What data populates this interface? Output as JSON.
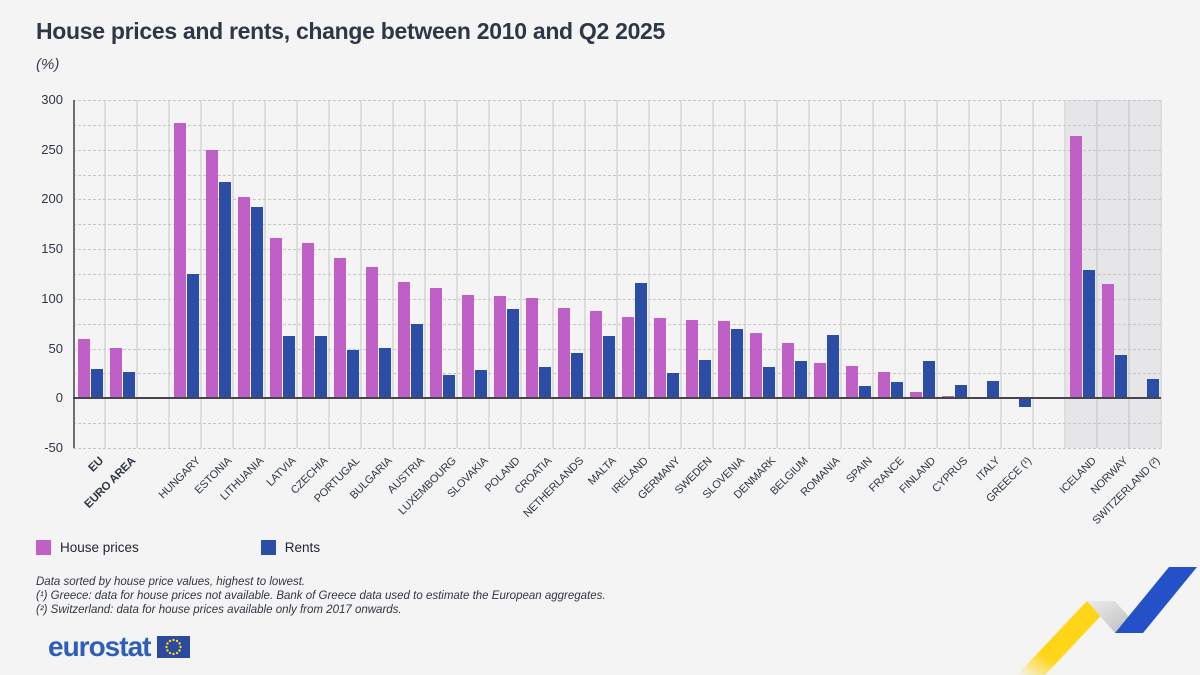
{
  "title": "House prices and rents, change between 2010 and Q2 2025",
  "subtitle": "(%)",
  "legend": {
    "house_prices_label": "House prices",
    "rents_label": "Rents"
  },
  "footnotes": [
    "Data sorted by house price values, highest to lowest.",
    "(¹) Greece: data for house prices not available. Bank of Greece data used to estimate the European aggregates.",
    "(²) Switzerland: data for house prices available only from 2017 onwards."
  ],
  "logo": {
    "text": "eurostat"
  },
  "colors": {
    "background": "#f4f4f5",
    "house_prices": "#c05fc5",
    "rents": "#2c4da6",
    "efta_shade": "#e6e6e8",
    "title_text": "#2e3745",
    "logo_blue": "#2e5eb8",
    "ribbon_yellow": "#ffd617",
    "ribbon_blue": "#2451c8"
  },
  "chart_data": {
    "type": "bar",
    "title": "House prices and rents, change between 2010 and Q2 2025",
    "ylabel": "(%)",
    "ylim": [
      -50,
      300
    ],
    "y_ticks": [
      300,
      250,
      200,
      150,
      100,
      50,
      0,
      -50
    ],
    "minor_grid_step": 25,
    "grid": true,
    "legend_position": "bottom-left",
    "categories": [
      "EU",
      "EURO AREA",
      "HUNGARY",
      "ESTONIA",
      "LITHUANIA",
      "LATVIA",
      "CZECHIA",
      "PORTUGAL",
      "BULGARIA",
      "AUSTRIA",
      "LUXEMBOURG",
      "SLOVAKIA",
      "POLAND",
      "CROATIA",
      "NETHERLANDS",
      "MALTA",
      "IRELAND",
      "GERMANY",
      "SWEDEN",
      "SLOVENIA",
      "DENMARK",
      "BELGIUM",
      "ROMANIA",
      "SPAIN",
      "FRANCE",
      "FINLAND",
      "CYPRUS",
      "ITALY",
      "GREECE (¹)",
      "ICELAND",
      "NORWAY",
      "SWITZERLAND (²)"
    ],
    "bold_categories": [
      "EU",
      "EURO AREA"
    ],
    "gap_before": [
      "HUNGARY",
      "ICELAND"
    ],
    "shaded_categories": [
      "ICELAND",
      "NORWAY",
      "SWITZERLAND (²)"
    ],
    "series": [
      {
        "name": "House prices",
        "color": "#c05fc5",
        "values": [
          60,
          51,
          277,
          250,
          202,
          161,
          156,
          141,
          132,
          117,
          111,
          104,
          103,
          101,
          91,
          88,
          82,
          81,
          79,
          78,
          66,
          56,
          35,
          32,
          26,
          6,
          2,
          1,
          null,
          264,
          115,
          null
        ]
      },
      {
        "name": "Rents",
        "color": "#2c4da6",
        "values": [
          29,
          26,
          125,
          218,
          192,
          63,
          63,
          49,
          51,
          75,
          23,
          28,
          90,
          31,
          46,
          63,
          116,
          25,
          39,
          70,
          31,
          38,
          64,
          12,
          16,
          38,
          13,
          17,
          -9,
          129,
          44,
          19
        ]
      }
    ]
  }
}
